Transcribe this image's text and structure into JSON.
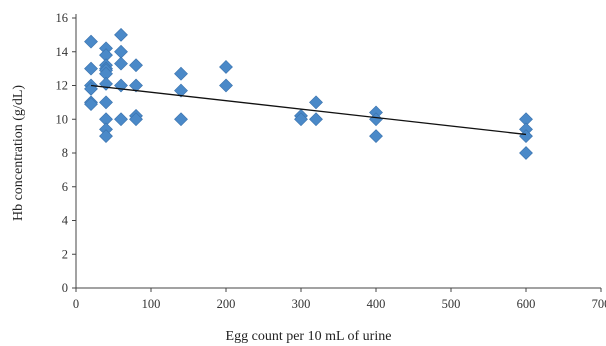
{
  "chart_data": {
    "type": "scatter",
    "title": "",
    "xlabel": "Egg count per 10 mL of urine",
    "ylabel": "Hb concentration (g/dL)",
    "xlim": [
      0,
      700
    ],
    "ylim": [
      0,
      16
    ],
    "x_ticks": [
      0,
      100,
      200,
      300,
      400,
      500,
      600,
      700
    ],
    "y_ticks": [
      0,
      2,
      4,
      6,
      8,
      10,
      12,
      14,
      16
    ],
    "grid": false,
    "legend": "none",
    "marker_color": "#4a89c8",
    "trendline": {
      "x": [
        20,
        600
      ],
      "y": [
        12.0,
        9.1
      ]
    },
    "series": [
      {
        "points": [
          [
            20,
            14.6
          ],
          [
            20,
            13.0
          ],
          [
            20,
            12.0
          ],
          [
            20,
            11.8
          ],
          [
            20,
            11.0
          ],
          [
            20,
            10.9
          ],
          [
            40,
            14.2
          ],
          [
            40,
            13.8
          ],
          [
            40,
            13.2
          ],
          [
            40,
            13.0
          ],
          [
            40,
            12.9
          ],
          [
            40,
            12.7
          ],
          [
            40,
            12.1
          ],
          [
            40,
            11.0
          ],
          [
            40,
            10.0
          ],
          [
            40,
            9.4
          ],
          [
            40,
            9.0
          ],
          [
            60,
            15.0
          ],
          [
            60,
            14.0
          ],
          [
            60,
            13.3
          ],
          [
            60,
            12.0
          ],
          [
            60,
            10.0
          ],
          [
            80,
            13.2
          ],
          [
            80,
            12.0
          ],
          [
            80,
            10.2
          ],
          [
            80,
            10.0
          ],
          [
            140,
            12.7
          ],
          [
            140,
            11.7
          ],
          [
            140,
            10.0
          ],
          [
            200,
            13.1
          ],
          [
            200,
            12.0
          ],
          [
            300,
            10.2
          ],
          [
            300,
            10.0
          ],
          [
            320,
            11.0
          ],
          [
            320,
            10.0
          ],
          [
            400,
            10.4
          ],
          [
            400,
            10.0
          ],
          [
            400,
            9.0
          ],
          [
            600,
            10.0
          ],
          [
            600,
            9.4
          ],
          [
            600,
            9.0
          ],
          [
            600,
            8.0
          ]
        ]
      }
    ]
  }
}
